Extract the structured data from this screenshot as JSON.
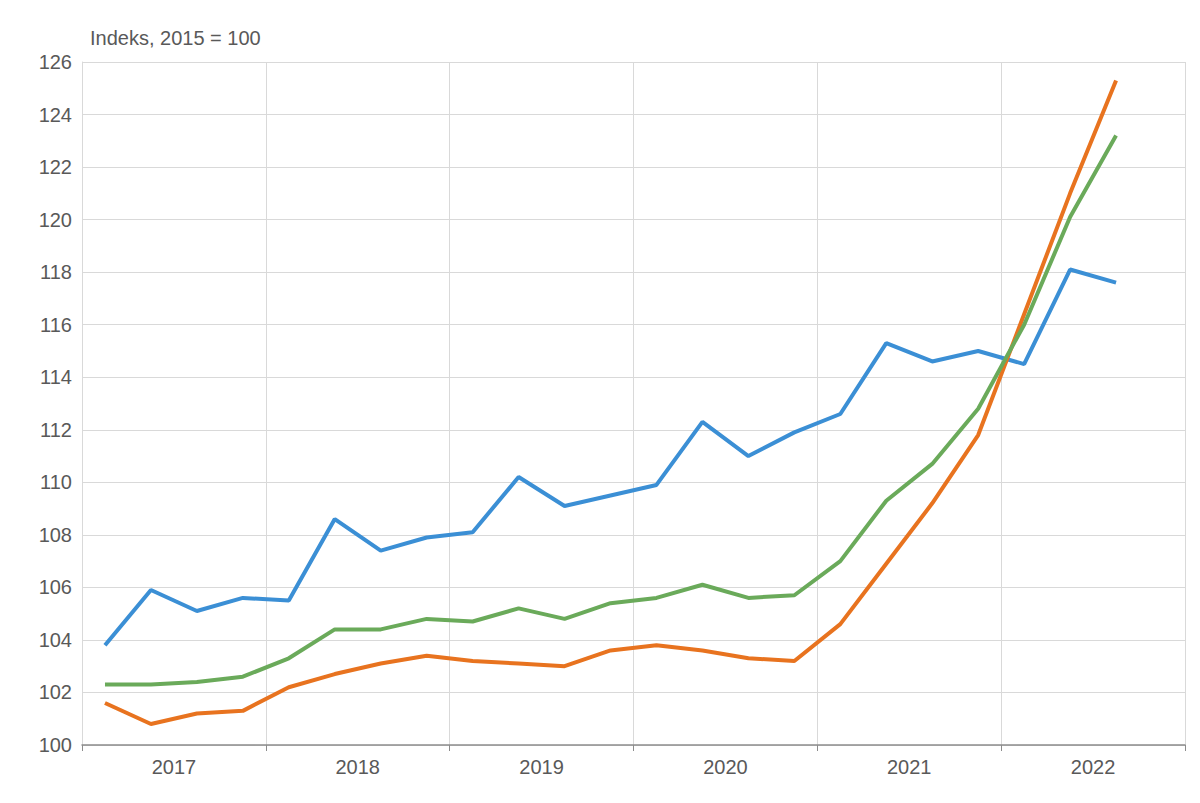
{
  "chart_data": {
    "type": "line",
    "y_label": "Indeks, 2015 = 100",
    "categories": [
      null,
      "2017",
      null,
      null,
      null,
      "2018",
      null,
      null,
      null,
      "2019",
      null,
      null,
      null,
      "2020",
      null,
      null,
      null,
      "2021",
      null,
      null,
      null,
      "2022",
      null,
      null
    ],
    "series": [
      {
        "color": "#3b8fd5",
        "values": [
          103.8,
          105.9,
          105.1,
          105.6,
          105.5,
          108.6,
          107.4,
          107.9,
          108.1,
          110.2,
          109.1,
          109.5,
          109.9,
          112.3,
          111.0,
          111.9,
          112.6,
          115.3,
          114.6,
          115.0,
          114.5,
          118.1,
          117.6,
          null
        ]
      },
      {
        "color": "#e8731f",
        "values": [
          101.6,
          100.8,
          101.2,
          101.3,
          102.2,
          102.7,
          103.1,
          103.4,
          103.2,
          103.1,
          103.0,
          103.6,
          103.8,
          103.6,
          103.3,
          103.2,
          104.6,
          106.9,
          109.2,
          111.8,
          116.4,
          121.0,
          125.3,
          null
        ]
      },
      {
        "color": "#6aaa5a",
        "values": [
          102.3,
          102.3,
          102.4,
          102.6,
          103.3,
          104.4,
          104.4,
          104.8,
          104.7,
          105.2,
          104.8,
          105.4,
          105.6,
          106.1,
          105.6,
          105.7,
          107.0,
          109.3,
          110.7,
          112.8,
          116.0,
          120.1,
          123.2,
          null
        ]
      }
    ],
    "ylim": [
      100,
      126
    ],
    "yticks": [
      100,
      102,
      104,
      106,
      108,
      110,
      112,
      114,
      116,
      118,
      120,
      122,
      124,
      126
    ],
    "grid": true
  }
}
